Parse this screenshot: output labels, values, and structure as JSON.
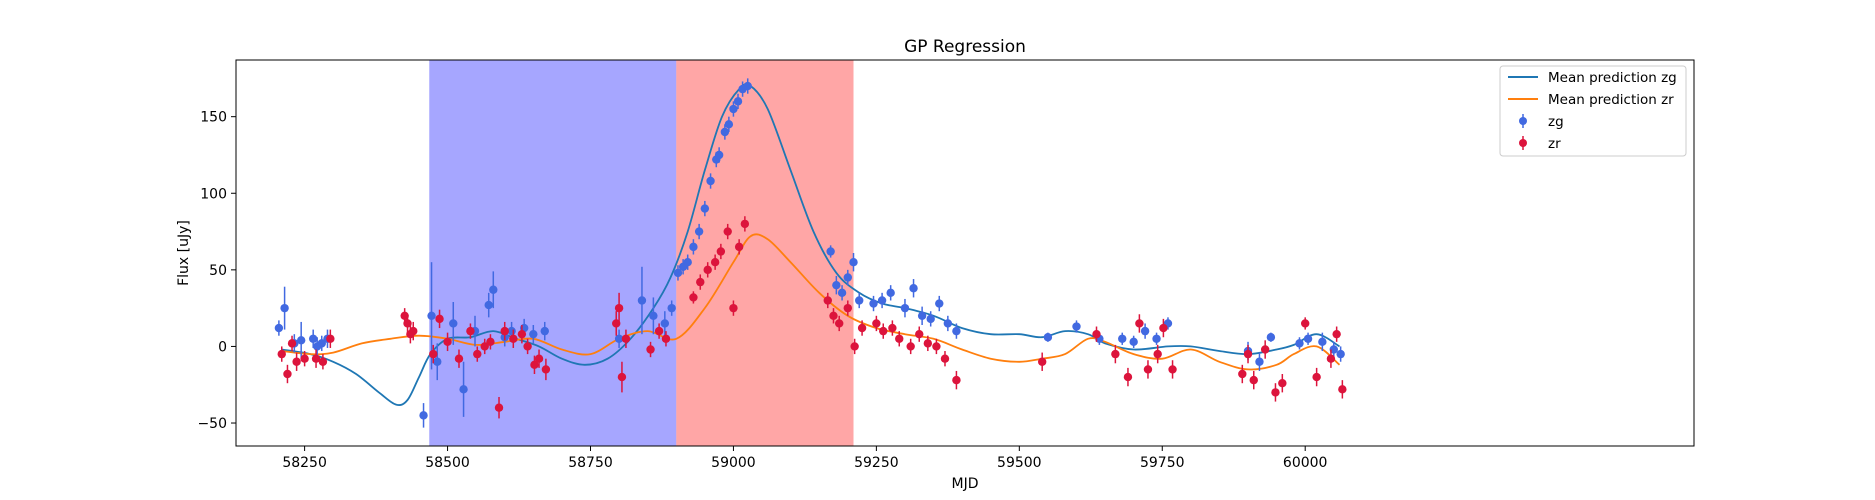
{
  "chart_data": {
    "type": "scatter",
    "title": "GP Regression",
    "xlabel": "MJD",
    "ylabel": "Flux [uJy]",
    "xlim": [
      58130,
      60680
    ],
    "ylim": [
      -65,
      187
    ],
    "xticks": [
      58250,
      58500,
      58750,
      59000,
      59250,
      59500,
      59750,
      60000
    ],
    "yticks": [
      -50,
      0,
      50,
      100,
      150
    ],
    "legend_position": "upper right",
    "colors": {
      "zg": "#4169e1",
      "zr": "#dc143c",
      "mean_zg": "#1f77b4",
      "mean_zr": "#ff7f0e"
    },
    "spans": [
      {
        "x0": 58468,
        "x1": 58900,
        "color": "#0000ff",
        "alpha": 0.35
      },
      {
        "x0": 58900,
        "x1": 59210,
        "color": "#ff0000",
        "alpha": 0.35
      }
    ],
    "series": [
      {
        "name": "Mean prediction zg",
        "kind": "line",
        "x": [
          58210,
          58260,
          58300,
          58340,
          58380,
          58410,
          58430,
          58450,
          58470,
          58500,
          58540,
          58580,
          58620,
          58660,
          58700,
          58740,
          58780,
          58820,
          58860,
          58890,
          58920,
          58950,
          58980,
          59010,
          59030,
          59060,
          59100,
          59140,
          59180,
          59220,
          59260,
          59300,
          59350,
          59400,
          59450,
          59500,
          59540,
          59580,
          59620,
          59650,
          59700,
          59760,
          59800,
          59850,
          59900,
          59950,
          59980,
          60020,
          60060
        ],
        "y": [
          -2,
          -5,
          -10,
          -18,
          -30,
          -38,
          -35,
          -20,
          -5,
          5,
          6,
          10,
          5,
          0,
          -8,
          -12,
          -8,
          5,
          25,
          45,
          75,
          115,
          150,
          168,
          170,
          155,
          115,
          75,
          48,
          35,
          28,
          25,
          20,
          12,
          8,
          8,
          6,
          10,
          8,
          2,
          -2,
          0,
          0,
          -3,
          -5,
          -2,
          1,
          8,
          0
        ]
      },
      {
        "name": "Mean prediction zr",
        "kind": "line",
        "x": [
          58210,
          58260,
          58300,
          58350,
          58400,
          58450,
          58500,
          58550,
          58600,
          58650,
          58700,
          58750,
          58800,
          58850,
          58900,
          58950,
          59000,
          59030,
          59060,
          59100,
          59150,
          59200,
          59250,
          59300,
          59350,
          59400,
          59450,
          59500,
          59540,
          59580,
          59620,
          59650,
          59700,
          59750,
          59800,
          59850,
          59900,
          59950,
          59980,
          60020,
          60060
        ],
        "y": [
          -3,
          -5,
          -4,
          2,
          5,
          7,
          5,
          1,
          3,
          5,
          -2,
          -5,
          5,
          10,
          5,
          25,
          55,
          72,
          70,
          55,
          35,
          20,
          12,
          8,
          5,
          -2,
          -8,
          -10,
          -8,
          -5,
          5,
          3,
          -5,
          -8,
          -2,
          -10,
          -15,
          -12,
          -5,
          0,
          -12
        ]
      },
      {
        "name": "zg",
        "kind": "errorbar",
        "x": [
          58205,
          58215,
          58232,
          58244,
          58265,
          58272,
          58280,
          58290,
          58458,
          58472,
          58482,
          58510,
          58528,
          58548,
          58572,
          58580,
          58600,
          58612,
          58634,
          58650,
          58670,
          58800,
          58840,
          58860,
          58880,
          58892,
          58903,
          58912,
          58920,
          58930,
          58940,
          58950,
          58960,
          58970,
          58975,
          58985,
          58992,
          59000,
          59008,
          59016,
          59025,
          59170,
          59180,
          59190,
          59200,
          59210,
          59220,
          59245,
          59260,
          59275,
          59300,
          59315,
          59330,
          59345,
          59360,
          59375,
          59390,
          59550,
          59600,
          59640,
          59680,
          59700,
          59720,
          59740,
          59760,
          59900,
          59920,
          59940,
          59990,
          60005,
          60030,
          60050,
          60062
        ],
        "y": [
          12,
          25,
          2,
          4,
          5,
          0,
          2,
          5,
          -45,
          20,
          -10,
          15,
          -28,
          10,
          27,
          37,
          6,
          10,
          12,
          8,
          10,
          5,
          30,
          20,
          15,
          25,
          48,
          52,
          55,
          65,
          75,
          90,
          108,
          122,
          125,
          140,
          145,
          155,
          160,
          168,
          170,
          62,
          40,
          35,
          45,
          55,
          30,
          28,
          30,
          35,
          25,
          38,
          20,
          18,
          28,
          15,
          10,
          6,
          13,
          5,
          5,
          3,
          10,
          5,
          15,
          -3,
          -10,
          6,
          2,
          5,
          3,
          -2,
          -5
        ],
        "err": [
          5,
          14,
          6,
          12,
          6,
          6,
          5,
          6,
          8,
          35,
          12,
          14,
          18,
          10,
          8,
          12,
          6,
          6,
          6,
          6,
          6,
          6,
          22,
          12,
          8,
          5,
          5,
          5,
          5,
          5,
          5,
          5,
          5,
          5,
          5,
          5,
          5,
          5,
          5,
          5,
          5,
          4,
          6,
          5,
          5,
          6,
          5,
          5,
          5,
          5,
          6,
          6,
          6,
          5,
          5,
          5,
          5,
          3,
          4,
          4,
          4,
          4,
          5,
          4,
          4,
          6,
          6,
          3,
          4,
          4,
          6,
          5,
          5
        ]
      },
      {
        "name": "zr",
        "kind": "errorbar",
        "x": [
          58210,
          58220,
          58228,
          58236,
          58250,
          58270,
          58282,
          58295,
          58425,
          58430,
          58435,
          58440,
          58475,
          58486,
          58500,
          58520,
          58540,
          58552,
          58565,
          58575,
          58590,
          58600,
          58615,
          58630,
          58640,
          58652,
          58660,
          58672,
          58795,
          58800,
          58805,
          58812,
          58855,
          58870,
          58882,
          58930,
          58942,
          58955,
          58968,
          58978,
          58990,
          59000,
          59010,
          59020,
          59165,
          59175,
          59185,
          59200,
          59212,
          59225,
          59250,
          59262,
          59278,
          59290,
          59310,
          59325,
          59340,
          59355,
          59370,
          59390,
          59540,
          59635,
          59668,
          59690,
          59710,
          59725,
          59742,
          59752,
          59768,
          59890,
          59900,
          59910,
          59930,
          59948,
          59960,
          60000,
          60020,
          60045,
          60055,
          60065
        ],
        "y": [
          -5,
          -18,
          2,
          -10,
          -8,
          -8,
          -10,
          5,
          20,
          15,
          8,
          10,
          -5,
          18,
          3,
          -8,
          10,
          -5,
          0,
          3,
          -40,
          10,
          5,
          8,
          0,
          -12,
          -8,
          -15,
          15,
          25,
          -20,
          5,
          -2,
          10,
          5,
          32,
          42,
          50,
          55,
          62,
          75,
          25,
          65,
          80,
          30,
          20,
          15,
          25,
          0,
          12,
          15,
          10,
          12,
          5,
          0,
          8,
          2,
          0,
          -8,
          -22,
          -10,
          8,
          -5,
          -20,
          15,
          -15,
          -5,
          12,
          -15,
          -18,
          -5,
          -22,
          -2,
          -30,
          -24,
          15,
          -20,
          -8,
          8,
          -28
        ],
        "err": [
          5,
          6,
          5,
          6,
          5,
          6,
          5,
          6,
          5,
          6,
          6,
          6,
          6,
          6,
          6,
          6,
          5,
          5,
          5,
          5,
          7,
          6,
          6,
          6,
          5,
          6,
          6,
          7,
          8,
          10,
          10,
          6,
          5,
          5,
          5,
          4,
          5,
          5,
          5,
          5,
          5,
          5,
          5,
          5,
          5,
          5,
          5,
          5,
          5,
          5,
          5,
          5,
          5,
          5,
          5,
          5,
          5,
          5,
          5,
          6,
          6,
          5,
          6,
          6,
          6,
          6,
          6,
          6,
          6,
          6,
          6,
          6,
          6,
          6,
          6,
          4,
          6,
          6,
          5,
          6
        ]
      }
    ]
  }
}
